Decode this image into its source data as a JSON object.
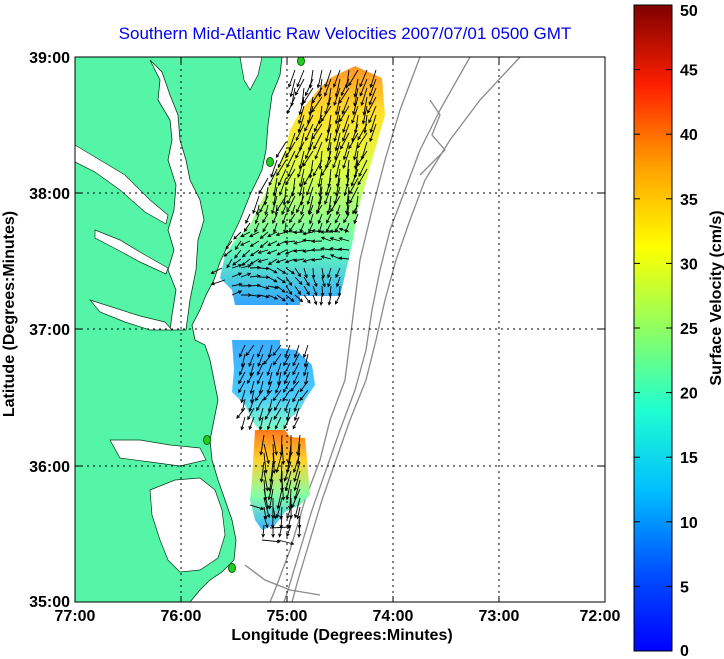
{
  "title": "Southern Mid-Atlantic Raw Velocities 2007/07/01 0500 GMT",
  "xlabel": "Longitude (Degrees:Minutes)",
  "ylabel": "Latitude (Degrees:Minutes)",
  "colorbar_label": "Surface Velocity (cm/s)",
  "x_ticks": [
    "77:00",
    "76:00",
    "75:00",
    "74:00",
    "73:00",
    "72:00"
  ],
  "y_ticks": [
    "39:00",
    "38:00",
    "37:00",
    "36:00",
    "35:00"
  ],
  "colorbar_ticks": [
    "50",
    "45",
    "40",
    "35",
    "30",
    "25",
    "20",
    "15",
    "10",
    "5",
    "0"
  ],
  "colors": {
    "land": "#55f5a8",
    "title": "#0000ee",
    "isobath": "#8a8a8a",
    "site": "#22cc22"
  },
  "map": {
    "lon_range": [
      -77,
      -72
    ],
    "lat_range": [
      35,
      39
    ],
    "grid": true,
    "velocity_range_cms": [
      0,
      50
    ],
    "colormap": "jet"
  }
}
